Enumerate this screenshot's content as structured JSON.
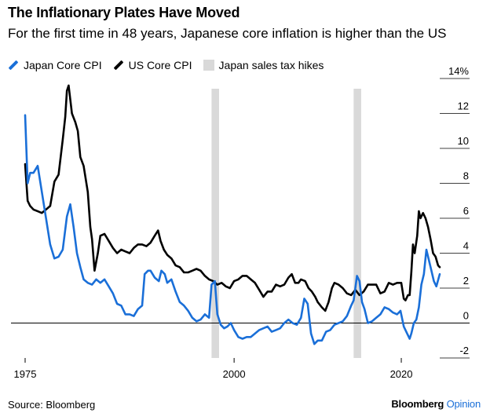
{
  "title": "The Inflationary Plates Have Moved",
  "subtitle": "For the first time in 48 years, Japanese core inflation is higher than the US",
  "source": "Source: Bloomberg",
  "brand": {
    "name": "Bloomberg",
    "suffix": "Opinion"
  },
  "colors": {
    "japan": "#1a6fd8",
    "us": "#000000",
    "tax": "#d9d9d9"
  },
  "chart_data": {
    "type": "line",
    "legend_placement": "top-left",
    "grid": true,
    "x_axis": {
      "ticks": [
        "1975",
        "2000",
        "2020"
      ],
      "range": [
        1975,
        2024.6
      ]
    },
    "y_axis": {
      "ticks": [
        "14%",
        "12",
        "10",
        "8",
        "6",
        "4",
        "2",
        "0",
        "-2"
      ],
      "range": [
        -2,
        14
      ],
      "side": "right"
    },
    "legend": [
      {
        "label": "Japan Core CPI",
        "kind": "line"
      },
      {
        "label": "US Core CPI",
        "kind": "line"
      },
      {
        "label": "Japan sales tax hikes",
        "kind": "band"
      }
    ],
    "bands": [
      [
        1997.3,
        1998.2
      ],
      [
        2014.3,
        2015.2
      ]
    ],
    "series": [
      {
        "name": "US Core CPI",
        "x": [
          1975.0,
          1975.3,
          1975.6,
          1976.0,
          1976.5,
          1977.0,
          1977.5,
          1978.0,
          1978.5,
          1979.0,
          1979.5,
          1979.8,
          1980.0,
          1980.2,
          1980.6,
          1981.0,
          1981.3,
          1981.6,
          1982.0,
          1982.5,
          1982.8,
          1983.0,
          1983.3,
          1983.7,
          1984.0,
          1984.5,
          1985.0,
          1985.5,
          1986.0,
          1986.5,
          1987.0,
          1987.5,
          1988.0,
          1988.5,
          1989.0,
          1989.5,
          1990.0,
          1990.5,
          1990.9,
          1991.2,
          1991.6,
          1992.0,
          1992.5,
          1993.0,
          1993.5,
          1994.0,
          1994.5,
          1995.0,
          1995.5,
          1996.0,
          1996.5,
          1997.0,
          1997.5,
          1998.0,
          1998.5,
          1999.0,
          1999.5,
          2000.0,
          2000.5,
          2001.0,
          2001.5,
          2002.0,
          2002.5,
          2003.0,
          2003.5,
          2004.0,
          2004.5,
          2005.0,
          2005.5,
          2006.0,
          2006.5,
          2006.9,
          2007.3,
          2007.7,
          2008.0,
          2008.5,
          2008.9,
          2009.3,
          2009.7,
          2010.0,
          2010.5,
          2010.9,
          2011.3,
          2011.7,
          2012.0,
          2012.5,
          2013.0,
          2013.5,
          2014.0,
          2014.5,
          2015.0,
          2015.5,
          2016.0,
          2016.5,
          2017.0,
          2017.5,
          2018.0,
          2018.5,
          2019.0,
          2019.5,
          2020.0,
          2020.3,
          2020.5,
          2020.8,
          2021.0,
          2021.2,
          2021.4,
          2021.6,
          2021.9,
          2022.1,
          2022.3,
          2022.6,
          2022.9,
          2023.2,
          2023.5,
          2023.8,
          2024.1,
          2024.4,
          2024.6
        ],
        "values": [
          9.1,
          7.0,
          6.7,
          6.5,
          6.4,
          6.3,
          6.5,
          6.7,
          8.1,
          8.5,
          10.5,
          11.8,
          13.3,
          13.6,
          12.0,
          11.5,
          11.0,
          9.5,
          9.0,
          7.5,
          5.5,
          4.8,
          3.0,
          4.0,
          5.0,
          5.1,
          4.7,
          4.3,
          4.0,
          4.2,
          4.1,
          4.0,
          4.3,
          4.5,
          4.5,
          4.4,
          4.6,
          5.0,
          5.3,
          4.7,
          4.2,
          3.9,
          3.7,
          3.3,
          3.2,
          2.9,
          2.9,
          3.0,
          3.1,
          3.0,
          2.7,
          2.5,
          2.4,
          2.2,
          2.3,
          2.1,
          2.0,
          2.4,
          2.5,
          2.7,
          2.7,
          2.5,
          2.3,
          1.9,
          1.5,
          1.8,
          1.8,
          2.2,
          2.1,
          2.2,
          2.6,
          2.8,
          2.3,
          2.3,
          2.5,
          2.4,
          2.0,
          1.8,
          1.5,
          1.2,
          0.9,
          0.7,
          1.2,
          2.0,
          2.3,
          2.2,
          2.0,
          1.7,
          1.6,
          1.9,
          1.6,
          1.8,
          2.2,
          2.2,
          2.2,
          1.7,
          1.8,
          2.3,
          2.2,
          2.3,
          2.3,
          1.4,
          1.3,
          1.6,
          1.6,
          2.9,
          4.5,
          4.0,
          5.0,
          6.4,
          6.0,
          6.3,
          6.0,
          5.5,
          4.8,
          4.0,
          3.8,
          3.3,
          3.2
        ]
      },
      {
        "name": "Japan Core CPI",
        "x": [
          1975.0,
          1975.3,
          1975.6,
          1976.0,
          1976.5,
          1977.0,
          1977.5,
          1978.0,
          1978.5,
          1979.0,
          1979.5,
          1980.0,
          1980.4,
          1980.8,
          1981.2,
          1981.6,
          1982.0,
          1982.5,
          1983.0,
          1983.5,
          1984.0,
          1984.5,
          1985.0,
          1985.5,
          1986.0,
          1986.5,
          1987.0,
          1987.5,
          1988.0,
          1988.5,
          1989.0,
          1989.3,
          1989.7,
          1990.0,
          1990.5,
          1991.0,
          1991.3,
          1991.7,
          1992.0,
          1992.5,
          1993.0,
          1993.5,
          1994.0,
          1994.5,
          1995.0,
          1995.5,
          1996.0,
          1996.5,
          1997.0,
          1997.3,
          1997.7,
          1998.0,
          1998.4,
          1998.8,
          1999.2,
          1999.6,
          2000.0,
          2000.5,
          2001.0,
          2001.5,
          2002.0,
          2002.5,
          2003.0,
          2003.5,
          2004.0,
          2004.5,
          2005.0,
          2005.5,
          2006.0,
          2006.5,
          2007.0,
          2007.5,
          2008.0,
          2008.4,
          2008.8,
          2009.2,
          2009.6,
          2010.0,
          2010.5,
          2011.0,
          2011.5,
          2012.0,
          2012.5,
          2013.0,
          2013.5,
          2014.0,
          2014.3,
          2014.7,
          2015.0,
          2015.3,
          2015.6,
          2016.0,
          2016.5,
          2017.0,
          2017.5,
          2018.0,
          2018.5,
          2019.0,
          2019.5,
          2019.9,
          2020.3,
          2020.7,
          2021.0,
          2021.2,
          2021.5,
          2021.8,
          2022.1,
          2022.4,
          2022.7,
          2023.0,
          2023.3,
          2023.6,
          2023.9,
          2024.2,
          2024.6
        ],
        "values": [
          11.9,
          8.0,
          8.6,
          8.6,
          9.0,
          7.5,
          6.0,
          4.5,
          3.7,
          3.8,
          4.2,
          6.1,
          6.8,
          5.5,
          4.0,
          3.2,
          2.5,
          2.3,
          2.2,
          2.5,
          2.3,
          2.5,
          2.1,
          1.7,
          1.1,
          1.0,
          0.5,
          0.5,
          0.4,
          0.8,
          1.0,
          2.8,
          3.0,
          3.0,
          2.6,
          2.4,
          3.0,
          2.8,
          2.3,
          2.5,
          1.8,
          1.2,
          1.0,
          0.7,
          0.3,
          0.1,
          0.2,
          0.5,
          0.3,
          2.2,
          2.4,
          0.5,
          -0.1,
          -0.3,
          -0.2,
          0.0,
          -0.4,
          -0.8,
          -0.9,
          -0.8,
          -0.8,
          -0.6,
          -0.4,
          -0.3,
          -0.2,
          -0.5,
          -0.4,
          -0.3,
          0.0,
          0.2,
          0.0,
          -0.1,
          0.3,
          1.4,
          1.1,
          -0.6,
          -1.2,
          -1.0,
          -1.0,
          -0.5,
          -0.4,
          -0.1,
          0.0,
          0.1,
          0.4,
          1.0,
          1.3,
          2.7,
          2.4,
          1.2,
          0.8,
          0.0,
          0.1,
          0.3,
          0.5,
          0.9,
          0.8,
          0.6,
          0.5,
          0.7,
          -0.2,
          -0.6,
          -0.9,
          -0.6,
          0.0,
          0.2,
          0.9,
          2.2,
          2.8,
          4.2,
          3.6,
          3.0,
          2.4,
          2.1,
          2.8
        ]
      }
    ]
  }
}
